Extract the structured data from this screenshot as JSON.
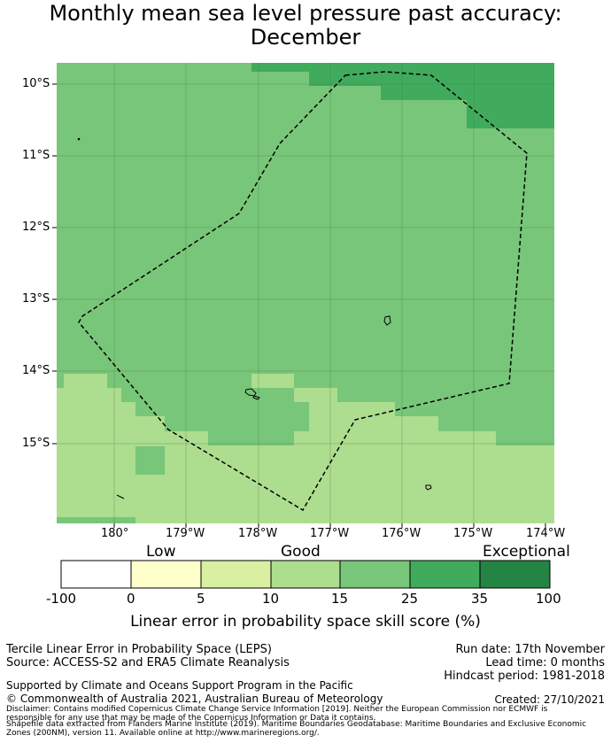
{
  "title_line1": "Monthly mean sea level pressure past accuracy:",
  "title_line2": "December",
  "lat_labels": [
    "10°S",
    "11°S",
    "12°S",
    "13°S",
    "14°S",
    "15°S"
  ],
  "lon_labels": [
    "180°",
    "179°W",
    "178°W",
    "177°W",
    "176°W",
    "175°W",
    "174°W"
  ],
  "colorbar": {
    "category_low": "Low",
    "category_good": "Good",
    "category_exceptional": "Exceptional",
    "ticks": [
      "-100",
      "0",
      "5",
      "10",
      "15",
      "25",
      "35",
      "100"
    ],
    "label": "Linear error in probability space skill score (%)",
    "colors": [
      "#ffffff",
      "#ffffcc",
      "#d9f0a3",
      "#addd8e",
      "#78c679",
      "#41ab5d",
      "#238443"
    ]
  },
  "map_colors": {
    "good": "#addd8e",
    "good_high": "#78c679",
    "very_good": "#41ab5d",
    "boundary": "#000000"
  },
  "footer": {
    "method": "Tercile Linear Error in Probability Space (LEPS)",
    "source": "Source: ACCESS-S2 and ERA5 Climate Reanalysis",
    "run_date": "Run date: 17th November",
    "lead_time": "Lead time: 0 months",
    "hindcast": "Hindcast period: 1981-2018",
    "support": "Supported by Climate and Oceans Support Program in the Pacific",
    "copyright": "© Commonwealth of Australia 2021, Australian Bureau of Meteorology",
    "created": "Created: 27/10/2021",
    "disclaimer1": "Disclaimer: Contains modified Copernicus Climate Change Service Information [2019]. Neither the European Commission nor ECMWF is",
    "disclaimer2": "responsible for any use that may be made of the Copernicus Information or Data it contains.",
    "disclaimer3": "Shapefile data extracted from Flanders Marine Institute (2019). Maritime Boundaries Geodatabase: Maritime Boundaries and Exclusive Economic",
    "disclaimer4": "Zones (200NM), version 11. Available online at http://www.marineregions.org/."
  }
}
